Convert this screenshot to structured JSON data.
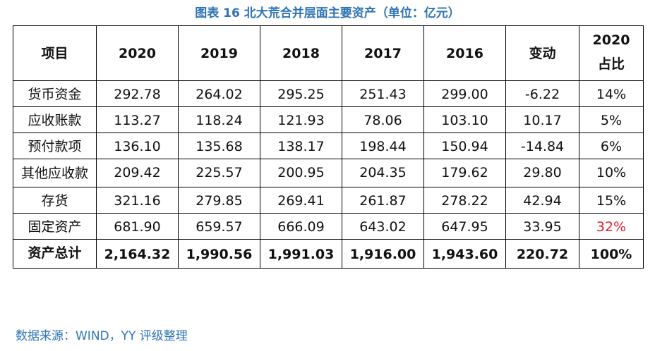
{
  "caption": "图表 16 北大荒合并层面主要资产（单位：亿元）",
  "headers": [
    "项目",
    "2020",
    "2019",
    "2018",
    "2017",
    "2016",
    "变动",
    "2020\n占比"
  ],
  "rows": [
    {
      "label": "货币资金",
      "values": [
        "292.78",
        "264.02",
        "295.25",
        "251.43",
        "299.00",
        "-6.22",
        "14%"
      ]
    },
    {
      "label": "应收账款",
      "values": [
        "113.27",
        "118.24",
        "121.93",
        "78.06",
        "103.10",
        "10.17",
        "5%"
      ]
    },
    {
      "label": "预付款项",
      "values": [
        "136.10",
        "135.68",
        "138.17",
        "198.44",
        "150.94",
        "-14.84",
        "6%"
      ]
    },
    {
      "label": "其他应收款",
      "values": [
        "209.42",
        "225.57",
        "200.95",
        "204.35",
        "179.62",
        "29.80",
        "10%"
      ]
    },
    {
      "label": "存货",
      "values": [
        "321.16",
        "279.85",
        "269.41",
        "261.87",
        "278.22",
        "42.94",
        "15%"
      ]
    },
    {
      "label": "固定资产",
      "values": [
        "681.90",
        "659.57",
        "666.09",
        "643.02",
        "647.95",
        "33.95",
        "32%"
      ]
    },
    {
      "label": "资产总计",
      "values": [
        "2,164.32",
        "1,990.56",
        "1,991.03",
        "1,916.00",
        "1,943.60",
        "220.72",
        "100%"
      ]
    }
  ],
  "highlight_color": "#e3212b",
  "source": "数据来源：WIND，YY 评级整理"
}
